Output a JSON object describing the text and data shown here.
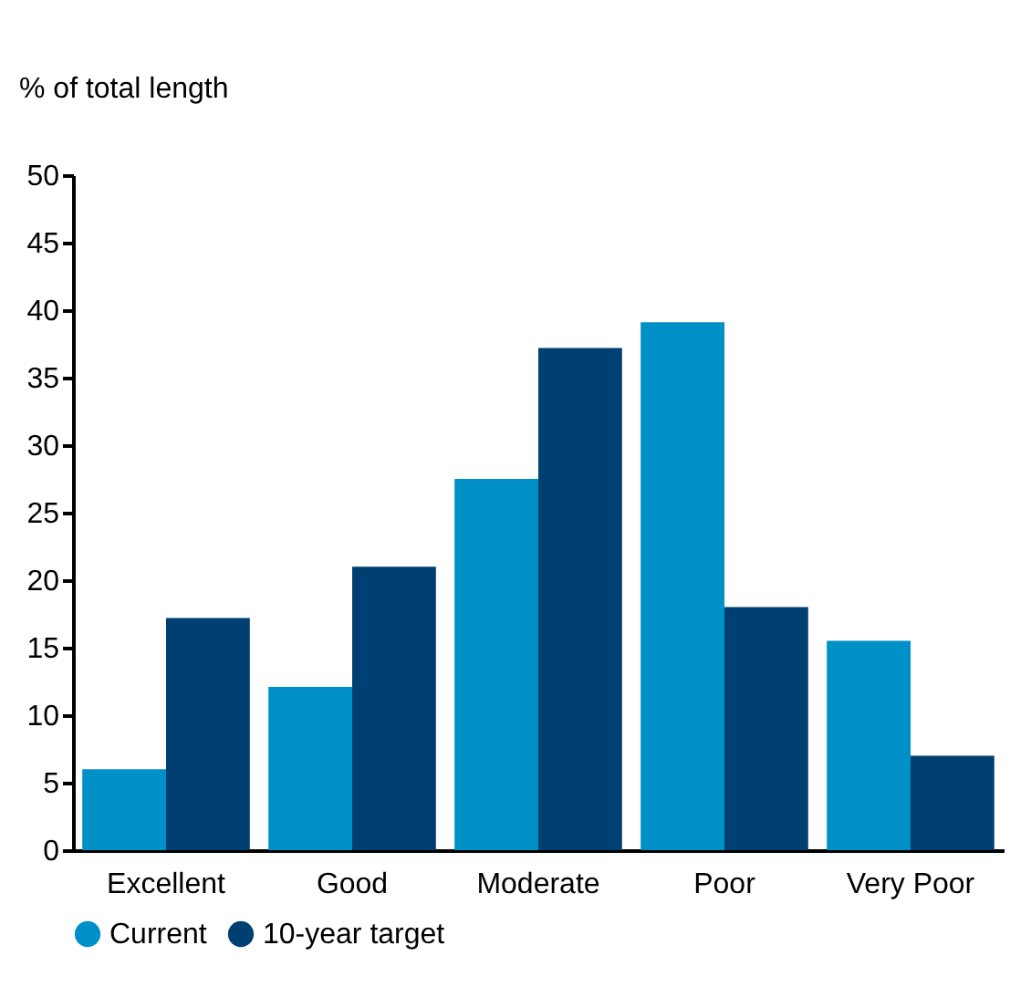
{
  "chart_data": {
    "type": "bar",
    "ylabel": "% of total length",
    "categories": [
      "Excellent",
      "Good",
      "Moderate",
      "Poor",
      "Very Poor"
    ],
    "series": [
      {
        "name": "Current",
        "color": "#0090c8",
        "values": [
          6.0,
          12.1,
          27.5,
          39.1,
          15.5
        ]
      },
      {
        "name": "10-year target",
        "color": "#003f72",
        "values": [
          17.2,
          21.0,
          37.2,
          18.0,
          7.0
        ]
      }
    ],
    "ylim": [
      0,
      50
    ],
    "yticks": [
      0,
      5,
      10,
      15,
      20,
      25,
      30,
      35,
      40,
      45,
      50
    ],
    "grid": false,
    "legend": "bottom left"
  }
}
